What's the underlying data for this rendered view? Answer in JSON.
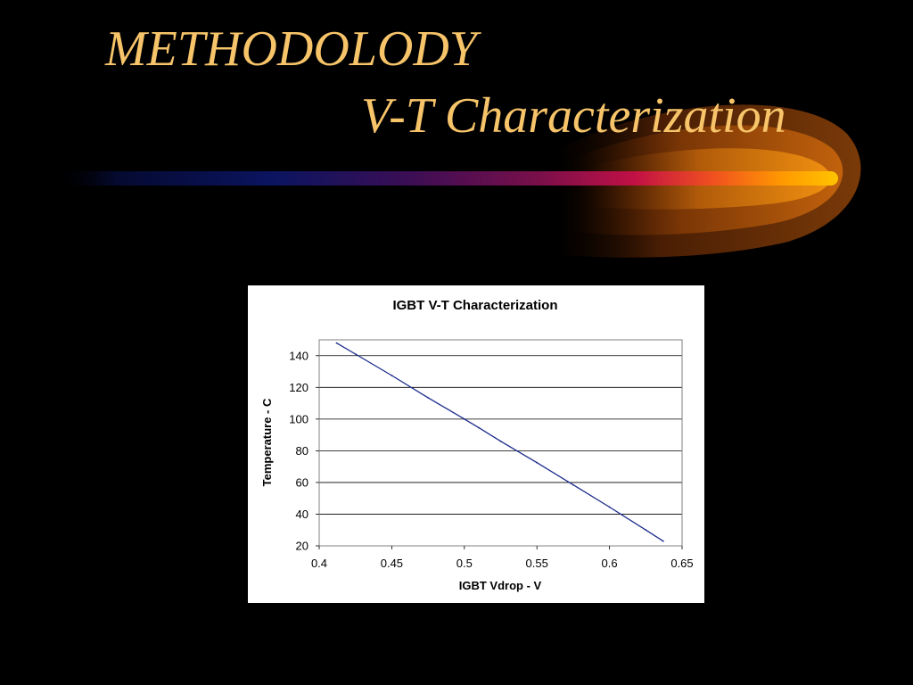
{
  "slide": {
    "title_line_1": "METHODOLODY",
    "title_line_2": "V-T Characterization",
    "title_color": "#F7C46A",
    "background_color": "#000000",
    "accent_colors": [
      "#0B1460",
      "#7A0F4A",
      "#D01040",
      "#FF8A00",
      "#FFC400"
    ]
  },
  "chart_data": {
    "type": "line",
    "title": "IGBT V-T Characterization",
    "xlabel": "IGBT Vdrop - V",
    "ylabel": "Temperature - C",
    "xlim": [
      0.4,
      0.65
    ],
    "ylim": [
      20,
      150
    ],
    "xticks": [
      0.4,
      0.45,
      0.5,
      0.55,
      0.6,
      0.65
    ],
    "xtick_labels": [
      "0.4",
      "0.45",
      "0.5",
      "0.55",
      "0.6",
      "0.65"
    ],
    "yticks": [
      20,
      40,
      60,
      80,
      100,
      120,
      140
    ],
    "ytick_labels": [
      "20",
      "40",
      "60",
      "80",
      "100",
      "120",
      "140"
    ],
    "grid": "horizontal",
    "legend": "none",
    "series": [
      {
        "color": "#1A2A8C",
        "x": [
          0.412,
          0.425,
          0.45,
          0.475,
          0.5,
          0.51,
          0.525,
          0.55,
          0.575,
          0.6,
          0.625,
          0.637
        ],
        "y": [
          148,
          141,
          127.5,
          113.5,
          100,
          94.5,
          86,
          72.5,
          58.5,
          44.5,
          30,
          23
        ]
      }
    ]
  }
}
